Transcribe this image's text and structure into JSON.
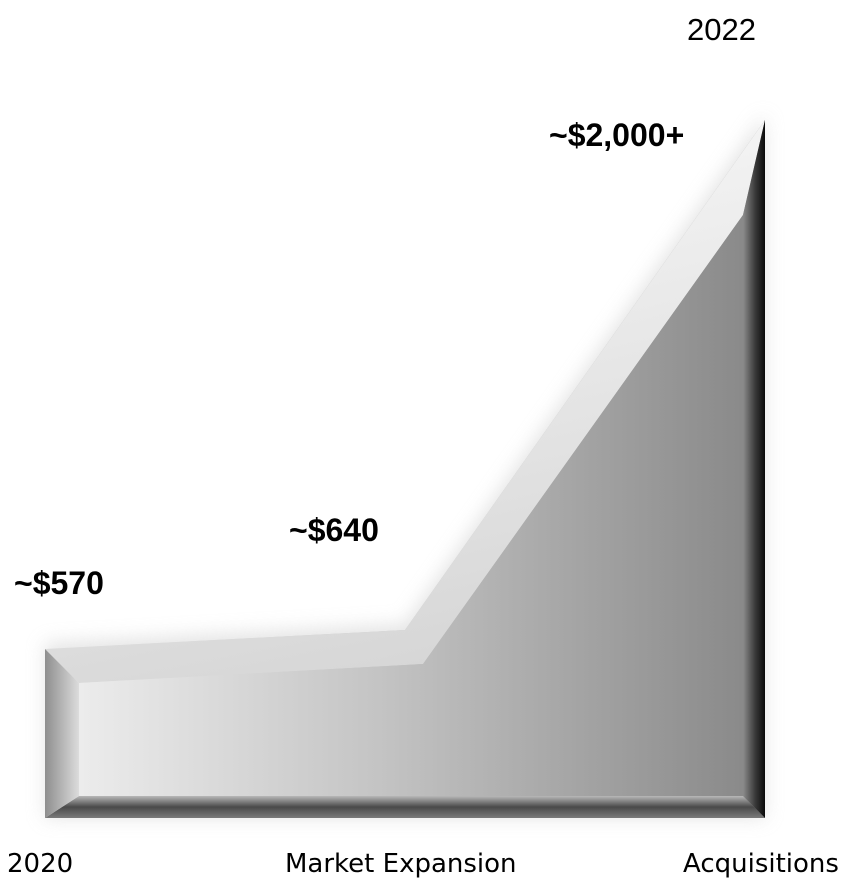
{
  "chart_data": {
    "type": "area",
    "title": "",
    "xlabel": "",
    "ylabel": "",
    "top_label": "2022",
    "categories": [
      "2020",
      "Market Expansion",
      "Acquisitions"
    ],
    "values": [
      570,
      640,
      2000
    ],
    "data_labels": [
      "~$570",
      "~$640",
      "~$2,000+"
    ],
    "ylim": [
      0,
      2000
    ],
    "grid": false,
    "legend": "none"
  }
}
